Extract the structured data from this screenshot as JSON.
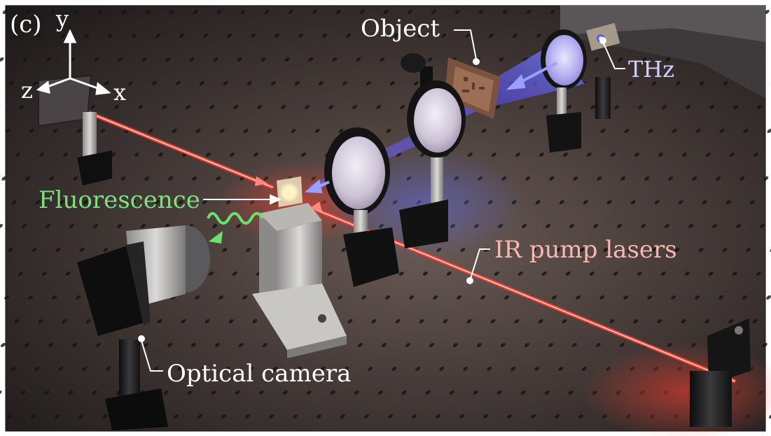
{
  "panel_label": "(c)",
  "axes": {
    "y": "y",
    "z": "z",
    "x": "x"
  },
  "labels": {
    "object": "Object",
    "thz": "THz",
    "fluorescence": "Fluorescence",
    "ir_pump": "IR pump lasers",
    "camera": "Optical camera"
  },
  "colors": {
    "ir_beam": "#ff5a48",
    "thz_beam": "#6d6cff",
    "fluorescence": "#6dde6d",
    "ir_label": "#f8b7b0",
    "thz_label": "#cfd1ff",
    "callout": "#ffffff"
  }
}
